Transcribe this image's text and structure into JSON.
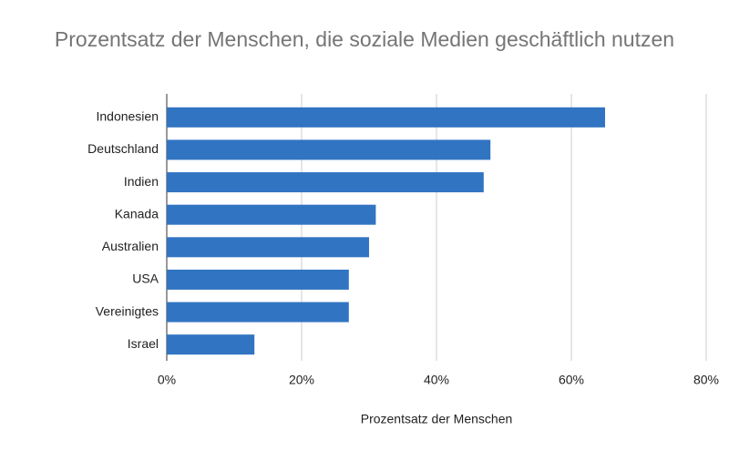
{
  "chart_data": {
    "type": "bar",
    "orientation": "horizontal",
    "title": "Prozentsatz der Menschen, die soziale Medien geschäftlich nutzen",
    "x_label": "Prozentsatz der Menschen",
    "categories": [
      "Indonesien",
      "Deutschland",
      "Indien",
      "Kanada",
      "Australien",
      "USA",
      "Vereinigtes",
      "Israel"
    ],
    "values": [
      65,
      48,
      47,
      31,
      30,
      27,
      27,
      13
    ],
    "color": "#3174c2",
    "xlim": [
      0,
      80
    ],
    "xticks": [
      {
        "value": 0,
        "label": "0%"
      },
      {
        "value": 20,
        "label": "20%"
      },
      {
        "value": 40,
        "label": "40%"
      },
      {
        "value": 60,
        "label": "60%"
      },
      {
        "value": 80,
        "label": "80%"
      }
    ],
    "grid": true
  }
}
